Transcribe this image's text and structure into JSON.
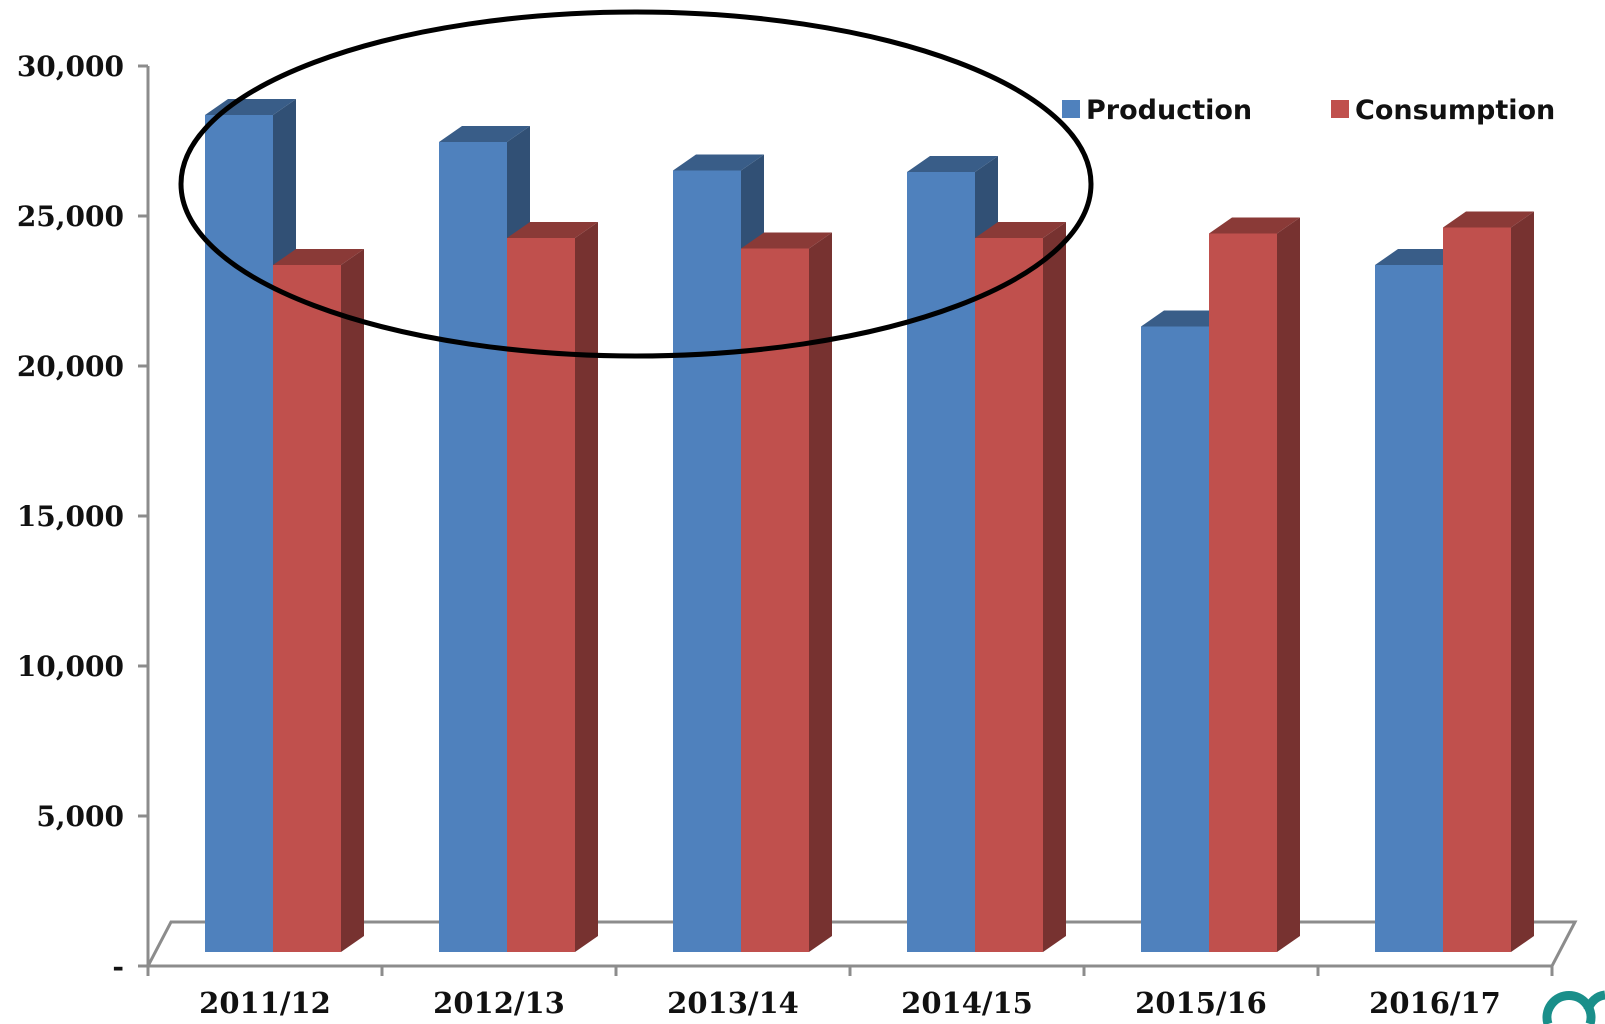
{
  "chart_data": {
    "type": "bar",
    "categories": [
      "2011/12",
      "2012/13",
      "2013/14",
      "2014/15",
      "2015/16",
      "2016/17"
    ],
    "series": [
      {
        "name": "Production",
        "values": [
          27900,
          27000,
          26050,
          26000,
          20850,
          22900
        ],
        "color": "#4F81BD"
      },
      {
        "name": "Consumption",
        "values": [
          22900,
          23800,
          23450,
          23800,
          23950,
          24150
        ],
        "color": "#C0504D"
      }
    ],
    "y_ticks": [
      "-",
      "5,000",
      "10,000",
      "15,000",
      "20,000",
      "25,000",
      "30,000"
    ],
    "ylim": [
      0,
      30000
    ],
    "title": "",
    "xlabel": "",
    "ylabel": "",
    "legend_position": "top-right",
    "style": "3d-clustered-column",
    "annotation": "ellipse around 2011/12–2014/15"
  }
}
